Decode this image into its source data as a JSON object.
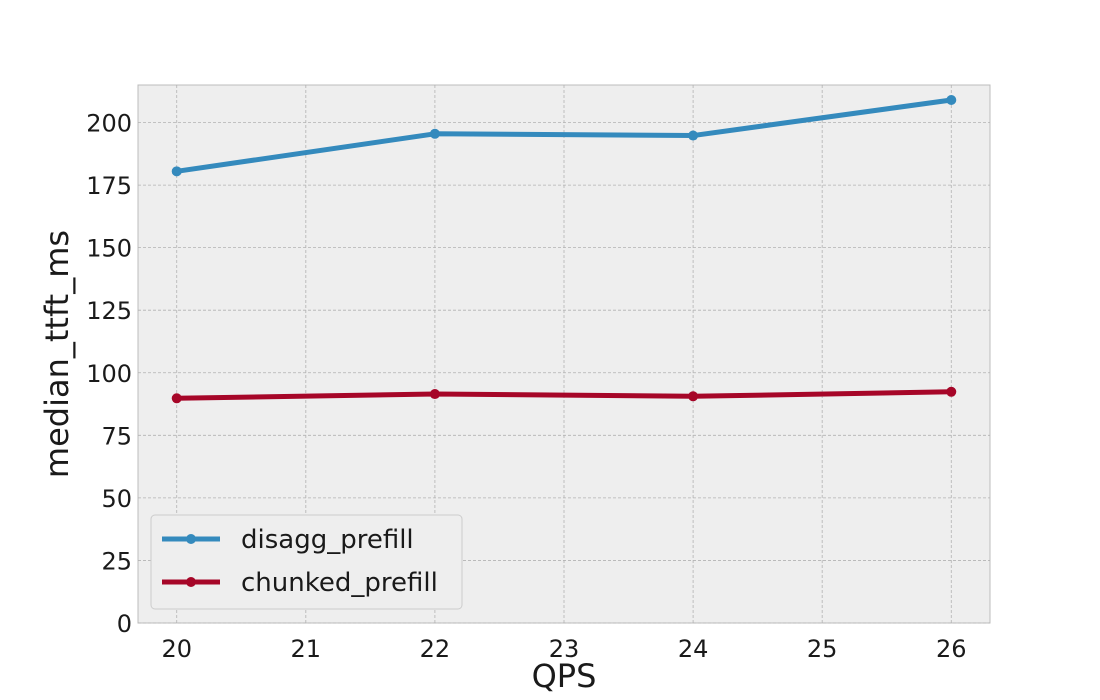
{
  "chart_data": {
    "type": "line",
    "title": "",
    "xlabel": "QPS",
    "ylabel": "median_ttft_ms",
    "x": [
      20,
      22,
      24,
      26
    ],
    "xlim": [
      19.7,
      26.3
    ],
    "ylim": [
      0,
      215
    ],
    "xticks": [
      20,
      21,
      22,
      23,
      24,
      25,
      26
    ],
    "yticks": [
      0,
      25,
      50,
      75,
      100,
      125,
      150,
      175,
      200
    ],
    "grid": true,
    "legend_position": "lower-left",
    "series": [
      {
        "name": "disagg_prefill",
        "color": "#348abd",
        "values": [
          180.5,
          195.5,
          194.8,
          209
        ]
      },
      {
        "name": "chunked_prefill",
        "color": "#a60628",
        "values": [
          89.8,
          91.5,
          90.6,
          92.4
        ]
      }
    ]
  }
}
